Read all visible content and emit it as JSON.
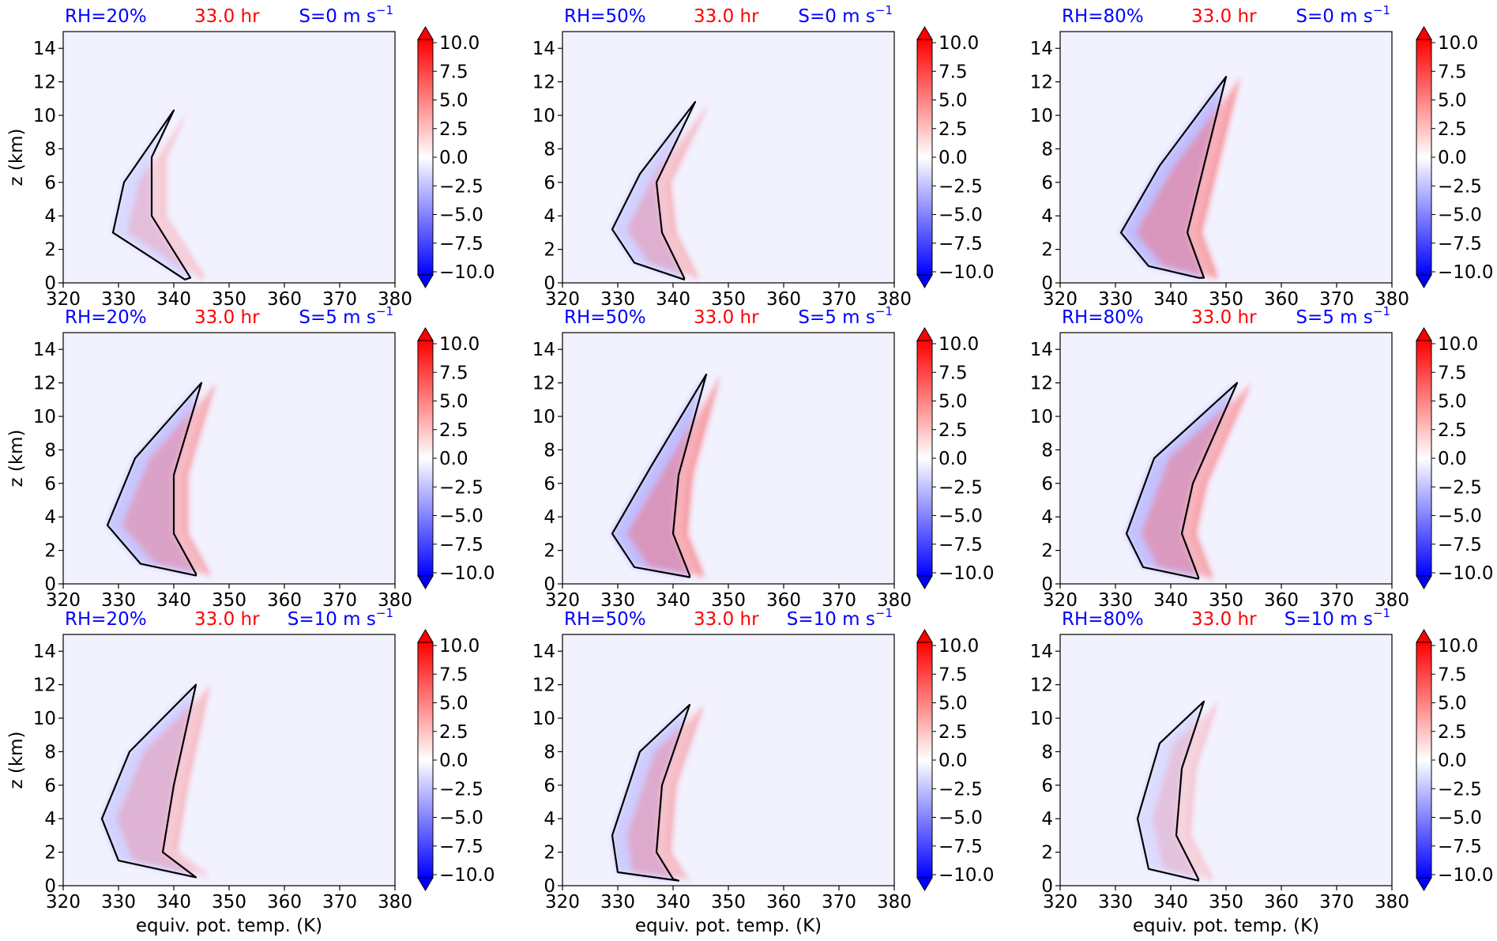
{
  "figure": {
    "ylabel": "z (km)",
    "xlabel": "equiv. pot. temp. (K)",
    "colors": {
      "rh": "#0000ff",
      "time": "#ff0000",
      "shear": "#0000ff",
      "positive": "#ff0000",
      "negative": "#0000ff",
      "background": "#f2f2ff",
      "contour": "#000000"
    }
  },
  "chart_data": {
    "type": "heatmap",
    "layout": "3x3 grid of panels, rows = shear, columns = relative humidity",
    "x_ticks": [
      "320",
      "330",
      "340",
      "350",
      "360",
      "370",
      "380"
    ],
    "y_ticks": [
      "0",
      "2",
      "4",
      "6",
      "8",
      "10",
      "12",
      "14"
    ],
    "xlim": [
      320,
      380
    ],
    "ylim": [
      0,
      15
    ],
    "colorbar_ticks": [
      "10.0",
      "7.5",
      "5.0",
      "2.5",
      "0.0",
      "−2.5",
      "−5.0",
      "−7.5",
      "−10.0"
    ],
    "colorbar_range": [
      -10,
      10
    ],
    "colorbar_extend": "both",
    "panels": [
      {
        "rh": "RH=20%",
        "time": "33.0 hr",
        "shear": "S=0 m s",
        "shear_exp": "−1",
        "shape": [
          [
            342,
            0.2
          ],
          [
            336,
            1.5
          ],
          [
            329,
            3.0
          ],
          [
            331,
            6.0
          ],
          [
            340,
            10.3
          ],
          [
            336,
            7.5
          ],
          [
            336,
            4.0
          ],
          [
            343,
            0.3
          ]
        ],
        "strength": 0.55
      },
      {
        "rh": "RH=50%",
        "time": "33.0 hr",
        "shear": "S=0 m s",
        "shear_exp": "−1",
        "shape": [
          [
            342,
            0.2
          ],
          [
            333,
            1.2
          ],
          [
            329,
            3.2
          ],
          [
            334,
            6.5
          ],
          [
            344,
            10.8
          ],
          [
            337,
            6.0
          ],
          [
            338,
            3.0
          ],
          [
            342,
            0.3
          ]
        ],
        "strength": 0.7
      },
      {
        "rh": "RH=80%",
        "time": "33.0 hr",
        "shear": "S=0 m s",
        "shear_exp": "−1",
        "shape": [
          [
            345,
            0.3
          ],
          [
            336,
            1.0
          ],
          [
            331,
            3.0
          ],
          [
            338,
            7.0
          ],
          [
            350,
            12.3
          ],
          [
            346,
            7.0
          ],
          [
            343,
            3.0
          ],
          [
            346,
            0.3
          ]
        ],
        "strength": 1.0
      },
      {
        "rh": "RH=20%",
        "time": "33.0 hr",
        "shear": "S=5 m s",
        "shear_exp": "−1",
        "shape": [
          [
            344,
            0.5
          ],
          [
            334,
            1.2
          ],
          [
            328,
            3.5
          ],
          [
            333,
            7.5
          ],
          [
            345,
            12.0
          ],
          [
            340,
            6.5
          ],
          [
            340,
            3.0
          ],
          [
            344,
            0.6
          ]
        ],
        "strength": 0.85
      },
      {
        "rh": "RH=50%",
        "time": "33.0 hr",
        "shear": "S=5 m s",
        "shear_exp": "−1",
        "shape": [
          [
            343,
            0.4
          ],
          [
            333,
            1.0
          ],
          [
            329,
            3.0
          ],
          [
            336,
            7.0
          ],
          [
            346,
            12.5
          ],
          [
            341,
            6.5
          ],
          [
            340,
            3.0
          ],
          [
            343,
            0.5
          ]
        ],
        "strength": 1.0
      },
      {
        "rh": "RH=80%",
        "time": "33.0 hr",
        "shear": "S=5 m s",
        "shear_exp": "−1",
        "shape": [
          [
            345,
            0.3
          ],
          [
            335,
            1.0
          ],
          [
            332,
            3.0
          ],
          [
            337,
            7.5
          ],
          [
            352,
            12.0
          ],
          [
            344,
            6.0
          ],
          [
            342,
            3.0
          ],
          [
            345,
            0.4
          ]
        ],
        "strength": 0.95
      },
      {
        "rh": "RH=20%",
        "time": "33.0 hr",
        "shear": "S=10 m s",
        "shear_exp": "−1",
        "shape": [
          [
            344,
            0.5
          ],
          [
            330,
            1.5
          ],
          [
            327,
            4.0
          ],
          [
            332,
            8.0
          ],
          [
            344,
            12.0
          ],
          [
            340,
            6.0
          ],
          [
            338,
            2.0
          ],
          [
            344,
            0.5
          ]
        ],
        "strength": 0.65
      },
      {
        "rh": "RH=50%",
        "time": "33.0 hr",
        "shear": "S=10 m s",
        "shear_exp": "−1",
        "shape": [
          [
            341,
            0.3
          ],
          [
            330,
            0.8
          ],
          [
            329,
            3.0
          ],
          [
            334,
            8.0
          ],
          [
            343,
            10.8
          ],
          [
            338,
            6.0
          ],
          [
            337,
            2.0
          ],
          [
            340,
            0.4
          ]
        ],
        "strength": 0.75
      },
      {
        "rh": "RH=80%",
        "time": "33.0 hr",
        "shear": "S=10 m s",
        "shear_exp": "−1",
        "shape": [
          [
            345,
            0.3
          ],
          [
            336,
            1.0
          ],
          [
            334,
            4.0
          ],
          [
            338,
            8.5
          ],
          [
            346,
            11.0
          ],
          [
            342,
            7.0
          ],
          [
            341,
            3.0
          ],
          [
            345,
            0.4
          ]
        ],
        "strength": 0.5
      }
    ]
  }
}
